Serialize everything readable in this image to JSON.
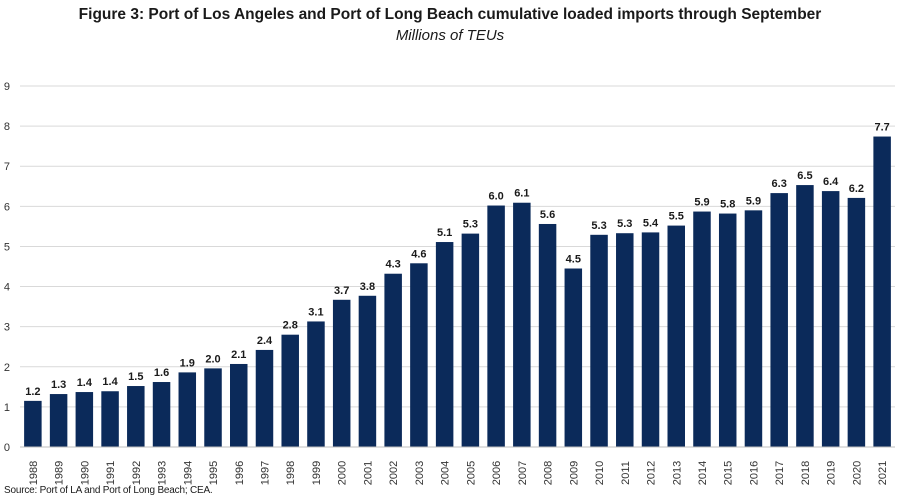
{
  "chart_data": {
    "type": "bar",
    "title": "Figure 3: Port of Los Angeles and Port of Long Beach cumulative loaded imports through September",
    "subtitle": "Millions of TEUs",
    "xlabel": "",
    "ylabel": "",
    "categories": [
      "1988",
      "1989",
      "1990",
      "1991",
      "1992",
      "1993",
      "1994",
      "1995",
      "1996",
      "1997",
      "1998",
      "1999",
      "2000",
      "2001",
      "2002",
      "2003",
      "2004",
      "2005",
      "2006",
      "2007",
      "2008",
      "2009",
      "2010",
      "2011",
      "2012",
      "2013",
      "2014",
      "2015",
      "2016",
      "2017",
      "2018",
      "2019",
      "2020",
      "2021"
    ],
    "values": [
      1.15,
      1.32,
      1.37,
      1.39,
      1.52,
      1.62,
      1.86,
      1.96,
      2.07,
      2.42,
      2.8,
      3.13,
      3.67,
      3.77,
      4.32,
      4.58,
      5.11,
      5.32,
      6.02,
      6.09,
      5.56,
      4.45,
      5.29,
      5.33,
      5.35,
      5.52,
      5.87,
      5.82,
      5.9,
      6.33,
      6.53,
      6.38,
      6.21,
      7.74
    ],
    "data_labels": [
      "1.2",
      "1.3",
      "1.4",
      "1.4",
      "1.5",
      "1.6",
      "1.9",
      "2.0",
      "2.1",
      "2.4",
      "2.8",
      "3.1",
      "3.7",
      "3.8",
      "4.3",
      "4.6",
      "5.1",
      "5.3",
      "6.0",
      "6.1",
      "5.6",
      "4.5",
      "5.3",
      "5.3",
      "5.4",
      "5.5",
      "5.9",
      "5.8",
      "5.9",
      "6.3",
      "6.5",
      "6.4",
      "6.2",
      "7.7"
    ],
    "ylim": [
      0,
      9
    ],
    "yticks": [
      "0",
      "1",
      "2",
      "3",
      "4",
      "5",
      "6",
      "7",
      "8",
      "9"
    ],
    "grid": true,
    "legend": "none",
    "colors": {
      "bar": "#0b2a5a",
      "grid": "#d9d9d9",
      "highlight_label": "#1f5fa6"
    },
    "highlight_label_index": 3
  },
  "source": "Source: Port of LA and Port of Long Beach; CEA."
}
